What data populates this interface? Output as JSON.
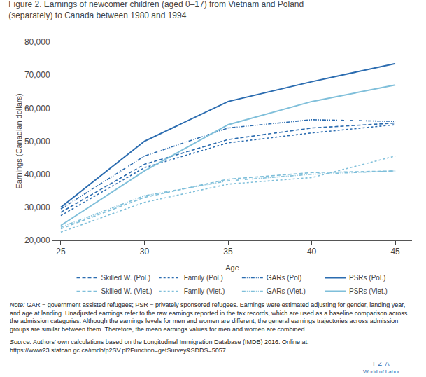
{
  "chart_data": {
    "type": "line",
    "title": "Figure 2. Earnings of newcomer children (aged 0–17) from Vietnam and Poland",
    "subtitle": "(separately) to Canada between 1980 and 1994",
    "xlabel": "Age",
    "ylabel": "Earnings (Canadian dollars)",
    "x": [
      25,
      30,
      35,
      40,
      45
    ],
    "xlim": [
      24.5,
      46
    ],
    "xticks": [
      25,
      30,
      35,
      40,
      45
    ],
    "ylim": [
      20000,
      80000
    ],
    "yticks": [
      {
        "value": 20000,
        "label": "20,000"
      },
      {
        "value": 30000,
        "label": "30,000"
      },
      {
        "value": 40000,
        "label": "40,000"
      },
      {
        "value": 50000,
        "label": "50,000"
      },
      {
        "value": 60000,
        "label": "60,000"
      },
      {
        "value": 70000,
        "label": "70,000"
      },
      {
        "value": 80000,
        "label": "80,000"
      }
    ],
    "grid": false,
    "legend": "bottom",
    "series": [
      {
        "name": "Skilled W. (Pol.)",
        "color": "#2B6CB0",
        "line_style": "dashed",
        "values": [
          28500,
          43000,
          50500,
          54000,
          55500
        ]
      },
      {
        "name": "Family (Pol.)",
        "color": "#2B6CB0",
        "line_style": "dotted",
        "values": [
          27500,
          42000,
          49500,
          52500,
          55000
        ]
      },
      {
        "name": "GARs (Pol)",
        "color": "#2B6CB0",
        "line_style": "dashdotdot",
        "values": [
          29500,
          45500,
          54000,
          56500,
          56000
        ]
      },
      {
        "name": "PSRs (Pol.)",
        "color": "#2B6CB0",
        "line_style": "solid",
        "values": [
          30000,
          50000,
          62000,
          68000,
          73500
        ]
      },
      {
        "name": "Skilled W. (Viet.)",
        "color": "#7FBFDA",
        "line_style": "dashed",
        "values": [
          23500,
          33000,
          38500,
          40500,
          41000
        ]
      },
      {
        "name": "Family (Viet.)",
        "color": "#7FBFDA",
        "line_style": "dotted",
        "values": [
          22500,
          31500,
          37000,
          39000,
          45500
        ]
      },
      {
        "name": "GARs (Viet.)",
        "color": "#7FBFDA",
        "line_style": "dashdotdot",
        "values": [
          24000,
          33500,
          38000,
          40000,
          41000
        ]
      },
      {
        "name": "PSRs (Viet.)",
        "color": "#7FBFDA",
        "line_style": "solid",
        "values": [
          24500,
          41000,
          55000,
          62000,
          67000
        ]
      }
    ],
    "annotations": [
      "Note: GAR = government assisted refugees; PSR = privately sponsored refugees. Earnings were estimated adjusting for gender, landing year, and age at landing. Unadjusted earnings refer to the raw earnings reported in the tax records, which are used as a baseline comparison across the admission categories. Although the earnings levels for men and women are different, the general earnings trajectories across admission groups are similar between them. Therefore, the mean earnings values for men and women are combined.",
      "Source: Authors' own calculations based on the Longitudinal Immigration Database (IMDB) 2016. Online at: https://www23.statcan.gc.ca/imdb/p2SV.pl?Function=getSurvey&SDDS=5057",
      "I  Z  A",
      "World of Labor"
    ]
  }
}
